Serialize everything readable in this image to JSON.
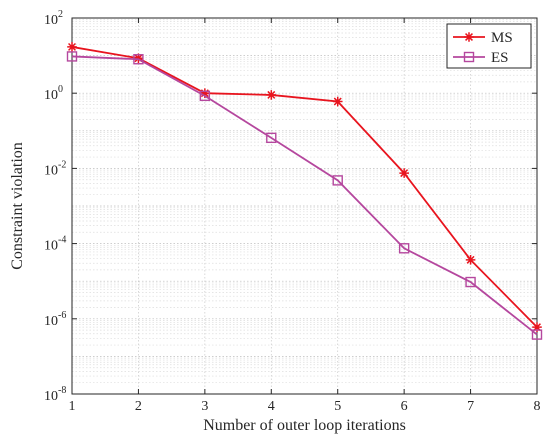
{
  "chart_data": {
    "type": "line",
    "title": "",
    "xlabel": "Number of outer loop iterations",
    "ylabel": "Constraint violation",
    "x": [
      1,
      2,
      3,
      4,
      5,
      6,
      7,
      8
    ],
    "xlim": [
      1,
      8
    ],
    "ylim": [
      1e-08,
      100
    ],
    "yscale": "log",
    "grid": "on (major and minor, dotted)",
    "legend_position": "top-right",
    "x_tick_labels": [
      "1",
      "2",
      "3",
      "4",
      "5",
      "6",
      "7",
      "8"
    ],
    "y_tick_labels": [
      {
        "base": "10",
        "exp": "-8"
      },
      {
        "base": "10",
        "exp": "-6"
      },
      {
        "base": "10",
        "exp": "-4"
      },
      {
        "base": "10",
        "exp": "-2"
      },
      {
        "base": "10",
        "exp": "0"
      },
      {
        "base": "10",
        "exp": "2"
      }
    ],
    "series": [
      {
        "name": "MS",
        "marker": "asterisk",
        "color": "#e8141e",
        "values": [
          17,
          8.5,
          1.0,
          0.9,
          0.6,
          0.0075,
          3.7e-05,
          6e-07
        ]
      },
      {
        "name": "ES",
        "marker": "square",
        "color": "#b5479e",
        "values": [
          9.5,
          8.0,
          0.85,
          0.065,
          0.0048,
          7.5e-05,
          9.5e-06,
          3.8e-07
        ]
      }
    ]
  }
}
